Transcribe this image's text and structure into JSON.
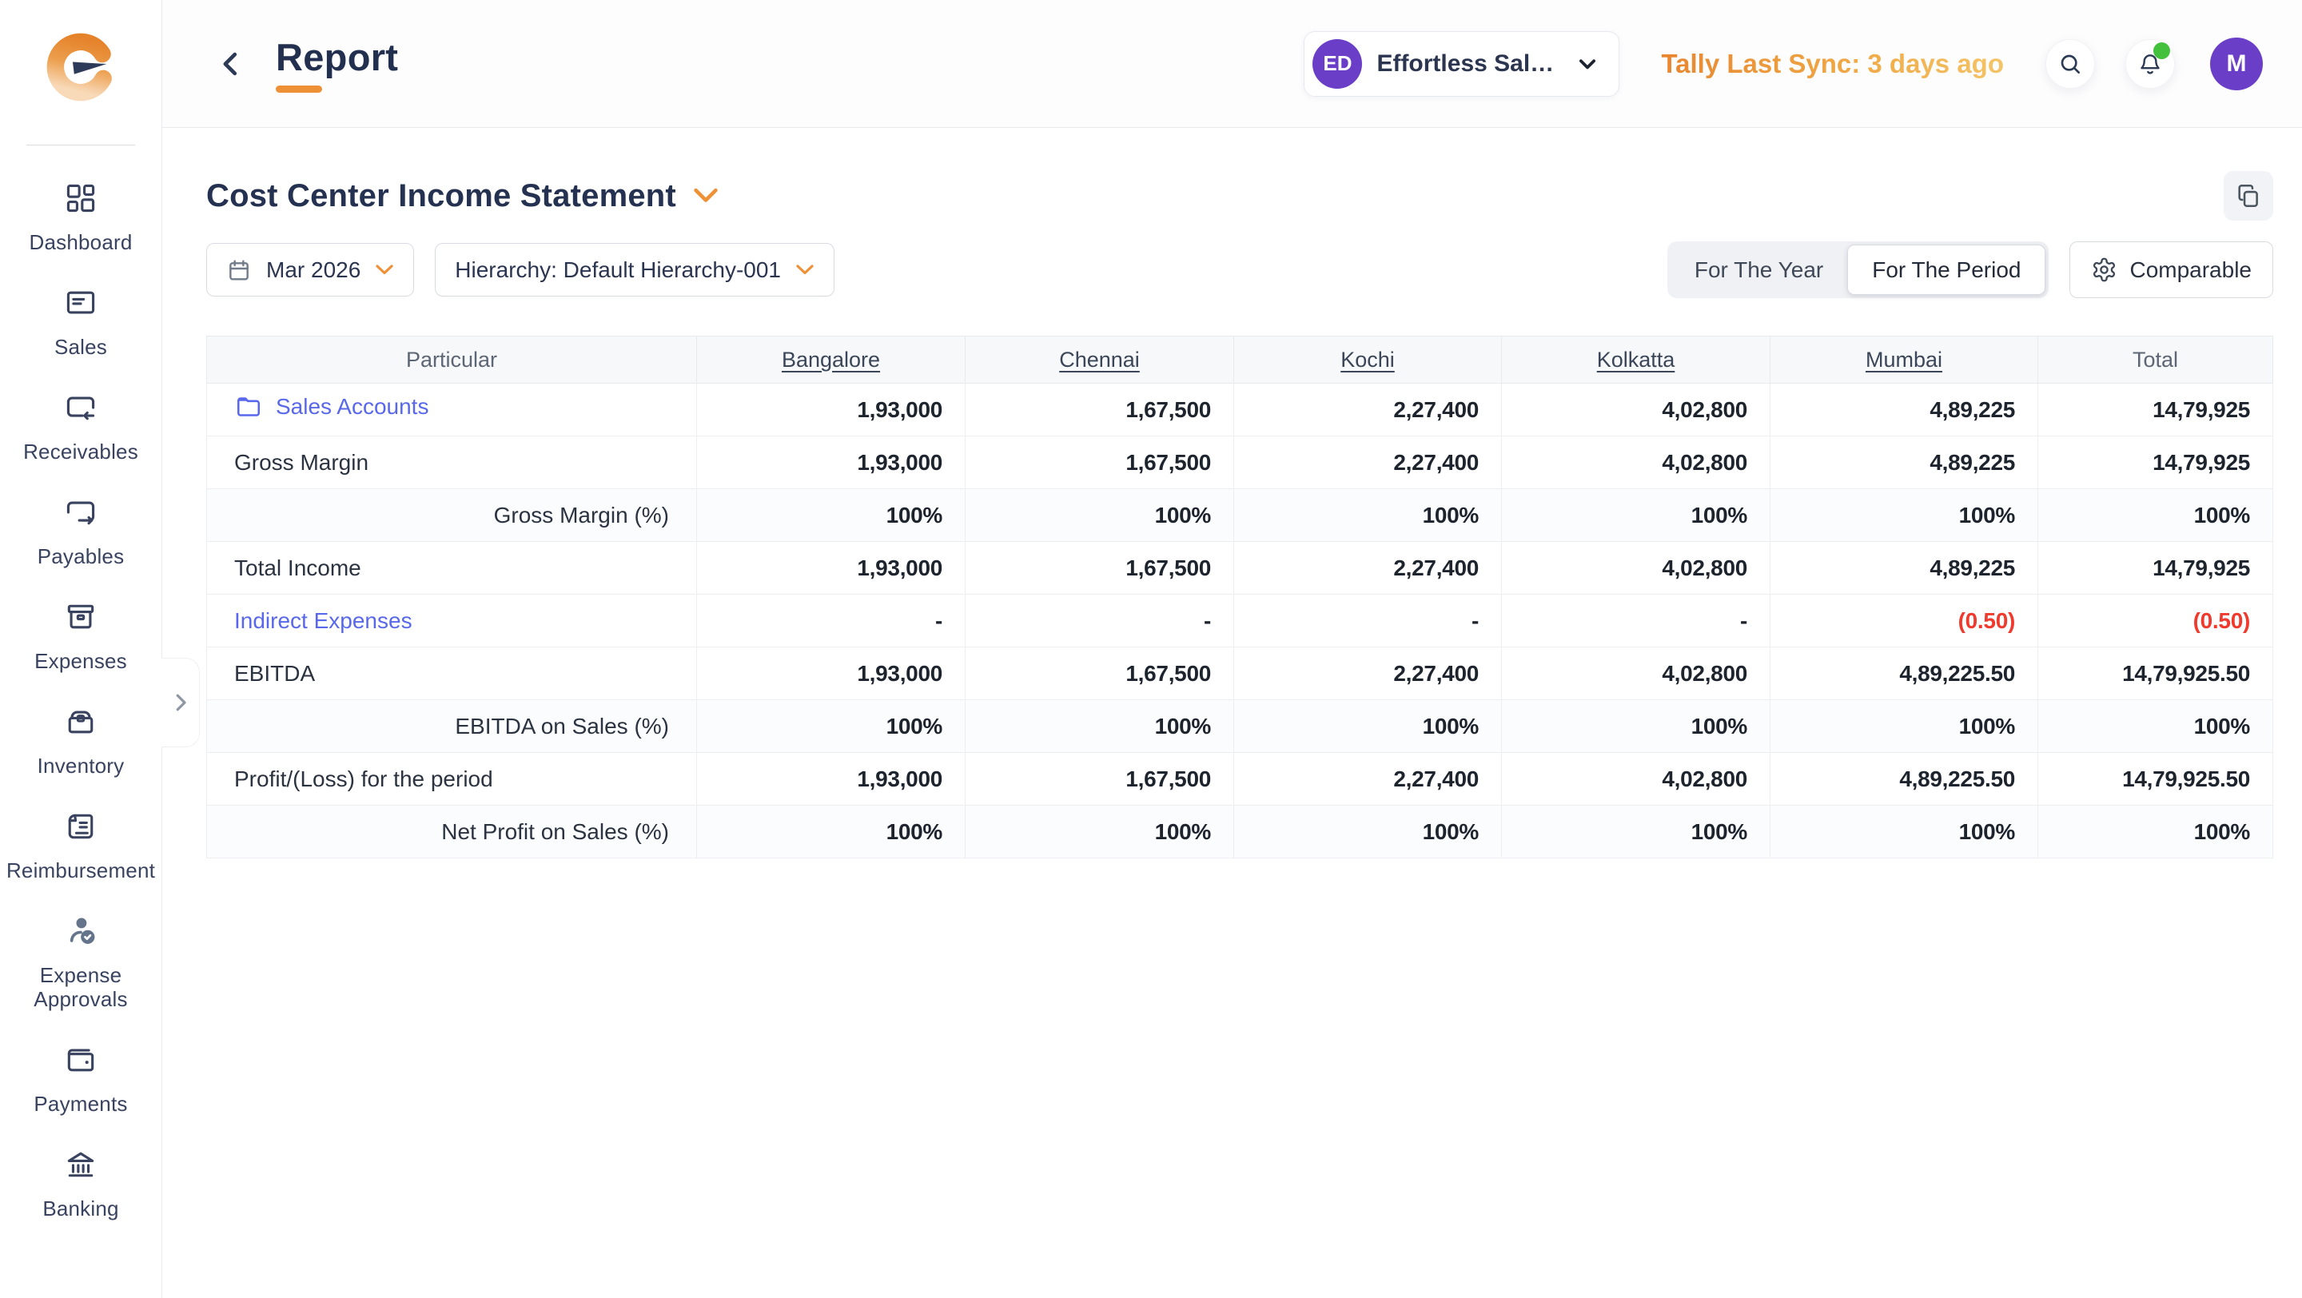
{
  "colors": {
    "accent": "#ED9036",
    "link": "#5968EA",
    "red": "#EF3B2D",
    "purple": "#6A3EC6",
    "green": "#44C13C"
  },
  "sidebar": {
    "items": [
      {
        "id": "dashboard",
        "label": "Dashboard",
        "icon": "dashboard-icon"
      },
      {
        "id": "sales",
        "label": "Sales",
        "icon": "sales-icon"
      },
      {
        "id": "receivables",
        "label": "Receivables",
        "icon": "receivables-icon"
      },
      {
        "id": "payables",
        "label": "Payables",
        "icon": "payables-icon"
      },
      {
        "id": "expenses",
        "label": "Expenses",
        "icon": "expenses-icon"
      },
      {
        "id": "inventory",
        "label": "Inventory",
        "icon": "inventory-icon"
      },
      {
        "id": "reimbursement",
        "label": "Reimbursement",
        "icon": "reimbursement-icon"
      },
      {
        "id": "expense-approvals",
        "label": "Expense Approvals",
        "icon": "expense-approvals-icon",
        "tinted": true
      },
      {
        "id": "payments",
        "label": "Payments",
        "icon": "payments-icon"
      },
      {
        "id": "banking",
        "label": "Banking",
        "icon": "banking-icon"
      }
    ],
    "expand_icon": "chevron-right-icon"
  },
  "topbar": {
    "back_icon": "chevron-left-icon",
    "title": "Report",
    "company": {
      "initials": "ED",
      "name": "Effortless Sal…",
      "chevron_icon": "chevron-down-icon"
    },
    "sync_status": "Tally Last Sync: 3 days ago",
    "icons": [
      "search-icon",
      "bell-icon"
    ],
    "notification_dot": true,
    "avatar_initial": "M"
  },
  "report": {
    "title": "Cost Center Income Statement",
    "title_chevron_icon": "chevron-down-icon",
    "copy_icon": "copy-icon",
    "filters": {
      "period_label": "Mar 2026",
      "period_icon": "calendar-icon",
      "hierarchy_label": "Hierarchy: Default Hierarchy-001",
      "toggle_options": [
        "For The Year",
        "For The Period"
      ],
      "toggle_selected": "For The Period",
      "comparable_label": "Comparable",
      "comparable_icon": "gear-icon"
    },
    "table": {
      "columns": [
        "Particular",
        "Bangalore",
        "Chennai",
        "Kochi",
        "Kolkatta",
        "Mumbai",
        "Total"
      ],
      "rows": [
        {
          "label": "Sales Accounts",
          "style": "link",
          "icon": "folder-icon",
          "values": [
            "1,93,000",
            "1,67,500",
            "2,27,400",
            "4,02,800",
            "4,89,225",
            "14,79,925"
          ]
        },
        {
          "label": "Gross Margin",
          "style": "normal",
          "values": [
            "1,93,000",
            "1,67,500",
            "2,27,400",
            "4,02,800",
            "4,89,225",
            "14,79,925"
          ]
        },
        {
          "label": "Gross Margin (%)",
          "style": "percent",
          "values": [
            "100%",
            "100%",
            "100%",
            "100%",
            "100%",
            "100%"
          ]
        },
        {
          "label": "Total Income",
          "style": "normal",
          "values": [
            "1,93,000",
            "1,67,500",
            "2,27,400",
            "4,02,800",
            "4,89,225",
            "14,79,925"
          ]
        },
        {
          "label": "Indirect Expenses",
          "style": "link",
          "values": [
            "-",
            "-",
            "-",
            "-",
            "(0.50)",
            "(0.50)"
          ],
          "negative": [
            false,
            false,
            false,
            false,
            true,
            true
          ]
        },
        {
          "label": "EBITDA",
          "style": "normal",
          "values": [
            "1,93,000",
            "1,67,500",
            "2,27,400",
            "4,02,800",
            "4,89,225.50",
            "14,79,925.50"
          ]
        },
        {
          "label": "EBITDA on Sales (%)",
          "style": "percent",
          "values": [
            "100%",
            "100%",
            "100%",
            "100%",
            "100%",
            "100%"
          ]
        },
        {
          "label": "Profit/(Loss) for the period",
          "style": "normal",
          "values": [
            "1,93,000",
            "1,67,500",
            "2,27,400",
            "4,02,800",
            "4,89,225.50",
            "14,79,925.50"
          ]
        },
        {
          "label": "Net Profit on Sales (%)",
          "style": "percent",
          "values": [
            "100%",
            "100%",
            "100%",
            "100%",
            "100%",
            "100%"
          ]
        }
      ]
    }
  }
}
